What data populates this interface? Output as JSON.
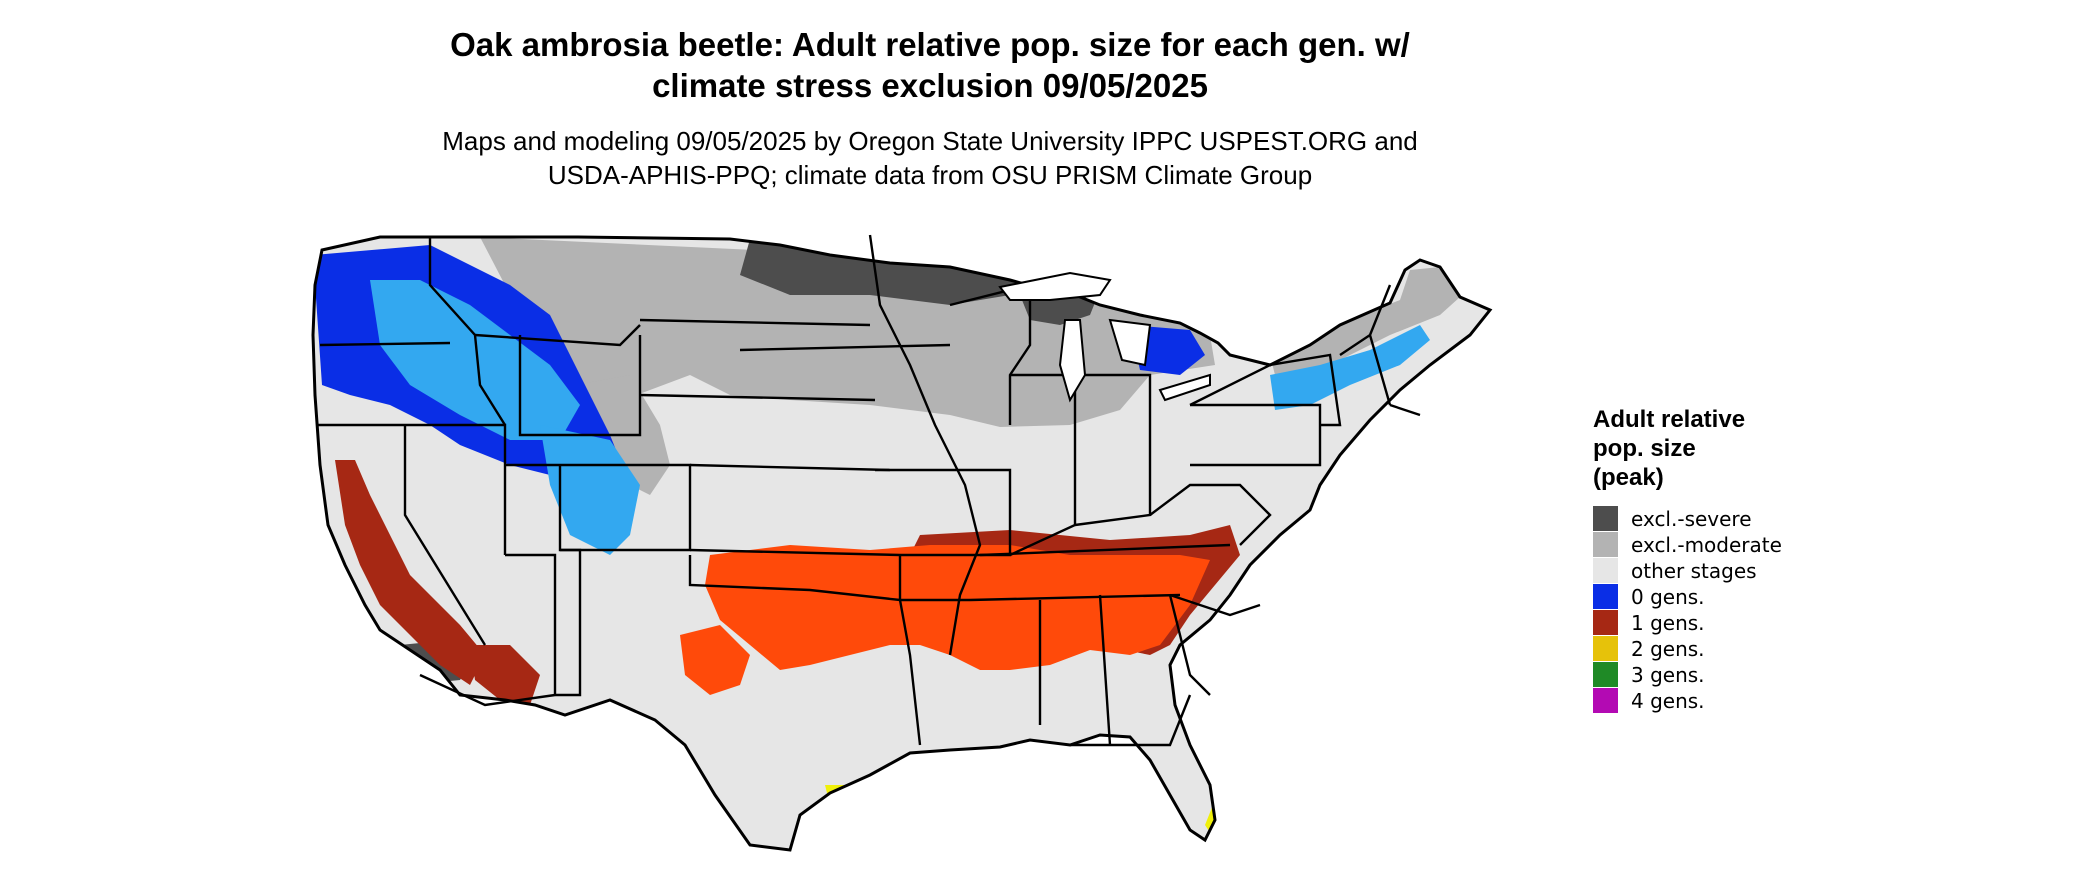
{
  "title": {
    "line1": "Oak ambrosia beetle: Adult relative pop. size for each gen. w/",
    "line2": "climate stress exclusion 09/05/2025"
  },
  "subtitle": {
    "line1": "Maps and modeling 09/05/2025 by Oregon State University IPPC USPEST.ORG and",
    "line2": "USDA-APHIS-PPQ; climate data from OSU PRISM Climate Group"
  },
  "legend": {
    "title_lines": [
      "Adult relative",
      "pop. size",
      "(peak)"
    ],
    "items": [
      {
        "label": "excl.-severe",
        "color": "#4d4d4d"
      },
      {
        "label": "excl.-moderate",
        "color": "#b3b3b3"
      },
      {
        "label": "other stages",
        "color": "#e6e6e6"
      },
      {
        "label": "0 gens.",
        "color": "#0a2ee6"
      },
      {
        "label": "1 gens.",
        "color": "#a62814"
      },
      {
        "label": "2 gens.",
        "color": "#e6c20a"
      },
      {
        "label": "3 gens.",
        "color": "#1f8a26"
      },
      {
        "label": "4 gens.",
        "color": "#b30ab3"
      }
    ]
  },
  "map": {
    "region": "conterminous-united-states",
    "colors": {
      "severe": "#4d4d4d",
      "moderate": "#b3b3b3",
      "other": "#e6e6e6",
      "gen0": "#0a2ee6",
      "gen0_light": "#33a8f0",
      "gen1_dark": "#a62814",
      "gen1_bright": "#ff4a0a",
      "gen2": "#f0f00a",
      "border": "#000000"
    }
  }
}
